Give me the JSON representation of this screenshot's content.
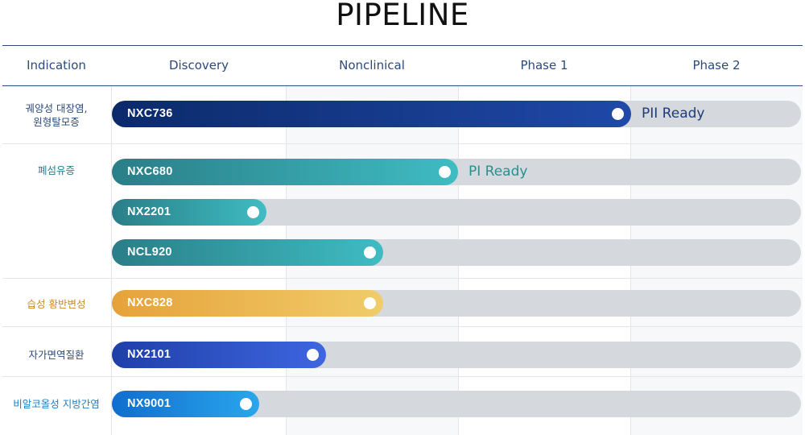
{
  "title": "PIPELINE",
  "columns": [
    "Indication",
    "Discovery",
    "Nonclinical",
    "Phase 1",
    "Phase 2"
  ],
  "indications": [
    {
      "label": "궤양성 대장염,\n원형탈모증",
      "color": "#2b4a7b"
    },
    {
      "label": "폐섬유증",
      "color": "#2b7f8a"
    },
    {
      "label": "습성 황반변성",
      "color": "#c98a2a"
    },
    {
      "label": "자가면역질환",
      "color": "#2b4a7b"
    },
    {
      "label": "비알코올성 지방간염",
      "color": "#1a7fc4"
    }
  ],
  "programs": [
    {
      "name": "NXC736",
      "indication": 0,
      "progress": 0.753,
      "status": "PII Ready",
      "status_color": "#1e3c7a",
      "gradient": [
        "#0c2a6a",
        "#1f48a8"
      ]
    },
    {
      "name": "NXC680",
      "indication": 1,
      "progress": 0.502,
      "status": "PI Ready",
      "status_color": "#2a8f92",
      "gradient": [
        "#2a7e88",
        "#3fbcc2"
      ]
    },
    {
      "name": "NX2201",
      "indication": 1,
      "progress": 0.224,
      "status": "",
      "status_color": "",
      "gradient": [
        "#2a7e88",
        "#3fbcc2"
      ]
    },
    {
      "name": "NCL920",
      "indication": 1,
      "progress": 0.394,
      "status": "",
      "status_color": "",
      "gradient": [
        "#2a7e88",
        "#3fbcc2"
      ]
    },
    {
      "name": "NXC828",
      "indication": 2,
      "progress": 0.394,
      "status": "",
      "status_color": "",
      "gradient": [
        "#e6a23a",
        "#f0cc6a"
      ]
    },
    {
      "name": "NX2101",
      "indication": 3,
      "progress": 0.311,
      "status": "",
      "status_color": "",
      "gradient": [
        "#1f3fa8",
        "#3e66e0"
      ]
    },
    {
      "name": "NX9001",
      "indication": 4,
      "progress": 0.214,
      "status": "",
      "status_color": "",
      "gradient": [
        "#0f6ecf",
        "#2aa6ec"
      ]
    }
  ]
}
